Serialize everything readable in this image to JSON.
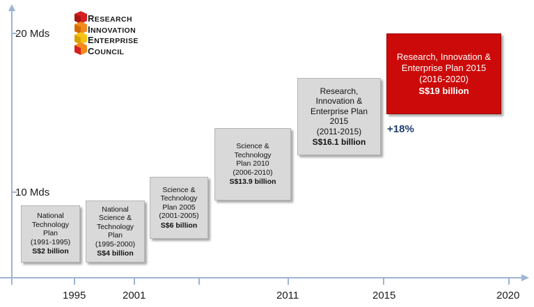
{
  "logo": {
    "rows": [
      {
        "initial": "R",
        "rest": "ESEARCH"
      },
      {
        "initial": "I",
        "rest": "NNOVATION"
      },
      {
        "initial": "E",
        "rest": "NTERPRISE"
      },
      {
        "initial": "C",
        "rest": "OUNCIL"
      }
    ]
  },
  "y_axis": {
    "ticks": [
      {
        "label": "20 Mds"
      },
      {
        "label": "10 Mds"
      }
    ]
  },
  "x_axis": {
    "ticks": [
      {
        "label": "1995"
      },
      {
        "label": "2001"
      },
      {
        "label": "2011"
      },
      {
        "label": "2015"
      },
      {
        "label": "2020"
      }
    ]
  },
  "plans": [
    {
      "lines": [
        "National",
        "Technology",
        "Plan",
        "(1991-1995)"
      ],
      "amount": "S$2 billion"
    },
    {
      "lines": [
        "National",
        "Science &",
        "Technology",
        "Plan",
        "(1995-2000)"
      ],
      "amount": "S$4 billion"
    },
    {
      "lines": [
        "Science &",
        "Technology",
        "Plan 2005",
        "(2001-2005)"
      ],
      "amount": "S$6 billion"
    },
    {
      "lines": [
        "Science &",
        "Technology",
        "Plan 2010",
        "(2006-2010)"
      ],
      "amount": "S$13.9 billion"
    },
    {
      "lines": [
        "Research,",
        "Innovation &",
        "Enterprise Plan",
        "2015",
        "(2011-2015)"
      ],
      "amount": "S$16.1 billion"
    },
    {
      "lines": [
        "Research, Innovation &",
        "Enterprise Plan 2015",
        "(2016-2020)"
      ],
      "amount": "S$19 billion"
    }
  ],
  "growth": "+18%",
  "colors": {
    "axis": "#9db4d3",
    "box": "#d9d9d9",
    "highlight": "#cc0a0a",
    "growth": "#1f3d6b",
    "logo_red": "#d42020",
    "logo_orange": "#f28a1c",
    "logo_yellow": "#f6c315"
  }
}
